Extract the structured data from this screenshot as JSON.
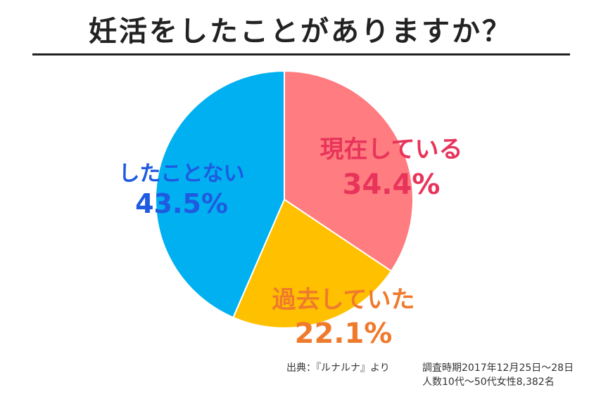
{
  "title": "妊活をしたことがありますか？",
  "chart_data": {
    "type": "pie",
    "slices": [
      {
        "label": "現在している",
        "value": 34.4,
        "value_label": "34.4%",
        "color": "#FF7C80",
        "label_color": "#E8345A"
      },
      {
        "label": "過去していた",
        "value": 22.1,
        "value_label": "22.1%",
        "color": "#FFC000",
        "label_color": "#F07A2C"
      },
      {
        "label": "したことない",
        "value": 43.5,
        "value_label": "43.5%",
        "color": "#00B0F0",
        "label_color": "#1F5BE0"
      }
    ],
    "start": "12 o'clock",
    "direction": "clockwise"
  },
  "source": {
    "prefix": "出典：『ルナルナ』より",
    "line1": "調査時期2017年12月25日～28日",
    "line2": "人数10代～50代女性8,382名"
  }
}
